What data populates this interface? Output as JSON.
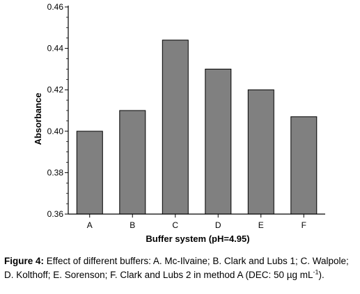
{
  "chart_data": {
    "type": "bar",
    "categories": [
      "A",
      "B",
      "C",
      "D",
      "E",
      "F"
    ],
    "values": [
      0.4,
      0.41,
      0.444,
      0.43,
      0.42,
      0.407
    ],
    "xlabel": "Buffer system (pH=4.95)",
    "ylabel": "Absorbance",
    "ylim": [
      0.36,
      0.46
    ],
    "yticks": [
      "0.36",
      "0.38",
      "0.40",
      "0.42",
      "0.44",
      "0.46"
    ],
    "bar_color": "#808080",
    "grid": false
  },
  "caption": {
    "label": "Figure 4:",
    "text": " Effect of different buffers: A. Mc-Ilvaine; B. Clark and Lubs 1; C. Walpole; D. Kolthoff; E. Sorenson; F. Clark and Lubs 2 in method A (DEC: 50 µg mL",
    "superscript": "-1",
    "tail": ")."
  }
}
